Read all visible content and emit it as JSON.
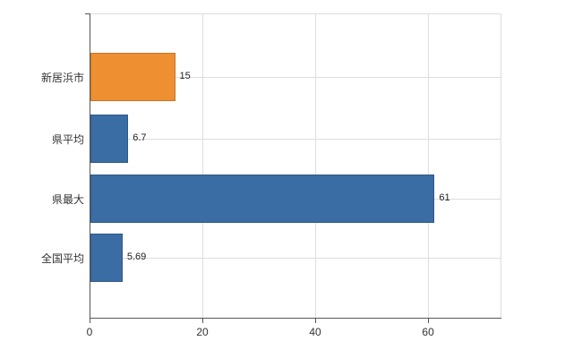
{
  "chart_data": {
    "type": "bar",
    "orientation": "horizontal",
    "title": "",
    "xlabel": "",
    "ylabel": "",
    "categories": [
      "新居浜市",
      "県平均",
      "県最大",
      "全国平均"
    ],
    "values": [
      15,
      6.7,
      61,
      5.69
    ],
    "value_labels": [
      "15",
      "6.7",
      "61",
      "5.69"
    ],
    "bar_colors": [
      "#ee8f31",
      "#3a6da4",
      "#3a6da4",
      "#3a6da4"
    ],
    "xlim": [
      0,
      73
    ],
    "x_ticks": [
      0,
      20,
      40,
      60
    ],
    "grid": true,
    "legend": "none"
  },
  "colors": {
    "grid": "#dddddd",
    "axis": "#555555",
    "text": "#333333"
  }
}
